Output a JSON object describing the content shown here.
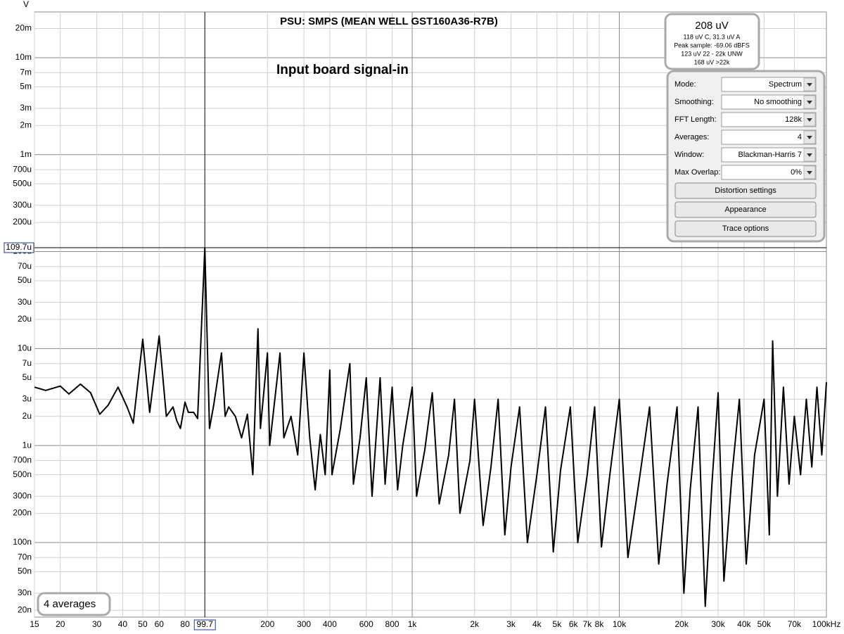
{
  "chart_data": {
    "type": "line",
    "title": "PSU: SMPS (MEAN WELL GST160A36-R7B)",
    "annotation": "Input board signal-in",
    "y_unit": "V",
    "x_scale": "log",
    "y_scale": "log",
    "grid": true,
    "xlim": [
      15,
      100000
    ],
    "ylim": [
      1.7e-08,
      0.0296
    ],
    "xticks": [
      15,
      20,
      30,
      40,
      50,
      60,
      80,
      200,
      300,
      400,
      600,
      800,
      {
        "value": 1000,
        "label": "1k"
      },
      {
        "value": 2000,
        "label": "2k"
      },
      {
        "value": 3000,
        "label": "3k"
      },
      {
        "value": 4000,
        "label": "4k"
      },
      {
        "value": 5000,
        "label": "5k"
      },
      {
        "value": 6000,
        "label": "6k"
      },
      {
        "value": 7000,
        "label": "7k"
      },
      {
        "value": 8000,
        "label": "8k"
      },
      {
        "value": 10000,
        "label": "10k"
      },
      {
        "value": 20000,
        "label": "20k"
      },
      {
        "value": 30000,
        "label": "30k"
      },
      {
        "value": 40000,
        "label": "40k"
      },
      {
        "value": 50000,
        "label": "50k"
      },
      {
        "value": 70000,
        "label": "70k"
      },
      {
        "value": 100000,
        "label": "100kHz"
      }
    ],
    "yticks": [
      {
        "value": 0.02,
        "label": "20m"
      },
      {
        "value": 0.01,
        "label": "10m"
      },
      {
        "value": 0.007,
        "label": "7m"
      },
      {
        "value": 0.005,
        "label": "5m"
      },
      {
        "value": 0.003,
        "label": "3m"
      },
      {
        "value": 0.002,
        "label": "2m"
      },
      {
        "value": 0.001,
        "label": "1m"
      },
      {
        "value": 0.0007,
        "label": "700u"
      },
      {
        "value": 0.0005,
        "label": "500u"
      },
      {
        "value": 0.0003,
        "label": "300u"
      },
      {
        "value": 0.0002,
        "label": "200u"
      },
      {
        "value": 0.0001,
        "label": "100u"
      },
      {
        "value": 7e-05,
        "label": "70u"
      },
      {
        "value": 5e-05,
        "label": "50u"
      },
      {
        "value": 3e-05,
        "label": "30u"
      },
      {
        "value": 2e-05,
        "label": "20u"
      },
      {
        "value": 1e-05,
        "label": "10u"
      },
      {
        "value": 7e-06,
        "label": "7u"
      },
      {
        "value": 5e-06,
        "label": "5u"
      },
      {
        "value": 3e-06,
        "label": "3u"
      },
      {
        "value": 2e-06,
        "label": "2u"
      },
      {
        "value": 1e-06,
        "label": "1u"
      },
      {
        "value": 7e-07,
        "label": "700n"
      },
      {
        "value": 5e-07,
        "label": "500n"
      },
      {
        "value": 3e-07,
        "label": "300n"
      },
      {
        "value": 2e-07,
        "label": "200n"
      },
      {
        "value": 1e-07,
        "label": "100n"
      },
      {
        "value": 7e-08,
        "label": "70n"
      },
      {
        "value": 5e-08,
        "label": "50n"
      },
      {
        "value": 3e-08,
        "label": "30n"
      },
      {
        "value": 2e-08,
        "label": "20n"
      }
    ],
    "cursor": {
      "x": 99.7,
      "y": {
        "value": 0.0001097,
        "label": "109.7u"
      }
    },
    "x": [
      15,
      17,
      20,
      22,
      25,
      28,
      31,
      34,
      38,
      42,
      45,
      50,
      54,
      60,
      65,
      70,
      73,
      76,
      80,
      83,
      88,
      92,
      99.7,
      105,
      110,
      120,
      125,
      130,
      140,
      150,
      160,
      170,
      180,
      185,
      200,
      205,
      230,
      240,
      260,
      280,
      300,
      320,
      340,
      360,
      380,
      400,
      410,
      450,
      500,
      520,
      560,
      600,
      640,
      700,
      740,
      800,
      850,
      900,
      1000,
      1050,
      1150,
      1250,
      1350,
      1500,
      1600,
      1700,
      1900,
      2000,
      2200,
      2400,
      2600,
      2800,
      3000,
      3300,
      3600,
      4000,
      4400,
      4800,
      5200,
      5800,
      6300,
      7000,
      7600,
      8200,
      9000,
      10000,
      11000,
      12500,
      14000,
      15500,
      17000,
      19000,
      20500,
      22000,
      24000,
      26000,
      28000,
      30000,
      32000,
      35000,
      38000,
      41000,
      45000,
      50000,
      53000,
      55000,
      58000,
      62000,
      66000,
      70000,
      75000,
      80000,
      85000,
      90000,
      95000,
      100000
    ],
    "series": [
      {
        "color": "#000000",
        "values": [
          4e-06,
          3.7e-06,
          4.1e-06,
          3.4e-06,
          4.3e-06,
          3.5e-06,
          2.1e-06,
          2.6e-06,
          4e-06,
          2.5e-06,
          1.7e-06,
          1.25e-05,
          2.2e-06,
          1.35e-05,
          2e-06,
          2.5e-06,
          1.8e-06,
          1.5e-06,
          2.8e-06,
          2.2e-06,
          2.2e-06,
          1.9e-06,
          0.0001097,
          1.5e-06,
          2.6e-06,
          9e-06,
          2e-06,
          2.5e-06,
          2e-06,
          1.2e-06,
          2.1e-06,
          5e-07,
          1.6e-05,
          1.5e-06,
          9e-06,
          1e-06,
          9e-06,
          1.2e-06,
          2e-06,
          8e-07,
          9e-06,
          1.2e-06,
          3.5e-07,
          1.3e-06,
          5e-07,
          6e-06,
          5e-07,
          1.5e-06,
          7e-06,
          4e-07,
          1.2e-06,
          5e-06,
          3e-07,
          5e-06,
          4e-07,
          4e-06,
          3.5e-07,
          1e-06,
          4e-06,
          3e-07,
          9e-07,
          3.5e-06,
          2.5e-07,
          8e-07,
          3e-06,
          2e-07,
          7e-07,
          3e-06,
          1.5e-07,
          6e-07,
          3e-06,
          1.2e-07,
          6e-07,
          2.5e-06,
          1e-07,
          5e-07,
          2.5e-06,
          8e-08,
          5.5e-07,
          2.5e-06,
          1e-07,
          5e-07,
          2.5e-06,
          9e-08,
          5e-07,
          3e-06,
          7e-08,
          4.5e-07,
          2.5e-06,
          6e-08,
          4e-07,
          2.5e-06,
          3e-08,
          3.5e-07,
          2.5e-06,
          2.2e-08,
          4e-07,
          3.5e-06,
          4e-08,
          5e-07,
          3e-06,
          6e-08,
          8e-07,
          3e-06,
          1.2e-07,
          1.2e-05,
          3e-07,
          4e-06,
          4e-07,
          2e-06,
          5e-07,
          3e-06,
          6e-07,
          4e-06,
          8e-07,
          4.5e-06
        ]
      }
    ]
  },
  "level_meter": {
    "value": "208 uV",
    "lines": [
      "118 uV C, 31.3 uV A",
      "Peak sample: -69.06 dBFS",
      "123 uV 22 - 22k UNW",
      "168 uV >22k"
    ]
  },
  "settings": [
    {
      "label": "Mode:",
      "value": "Spectrum"
    },
    {
      "label": "Smoothing:",
      "value": "No  smoothing"
    },
    {
      "label": "FFT Length:",
      "value": "128k"
    },
    {
      "label": "Averages:",
      "value": "4"
    },
    {
      "label": "Window:",
      "value": "Blackman-Harris 7"
    },
    {
      "label": "Max Overlap:",
      "value": "0%"
    }
  ],
  "buttons": [
    "Distortion settings",
    "Appearance",
    "Trace options"
  ],
  "status": "4 averages"
}
